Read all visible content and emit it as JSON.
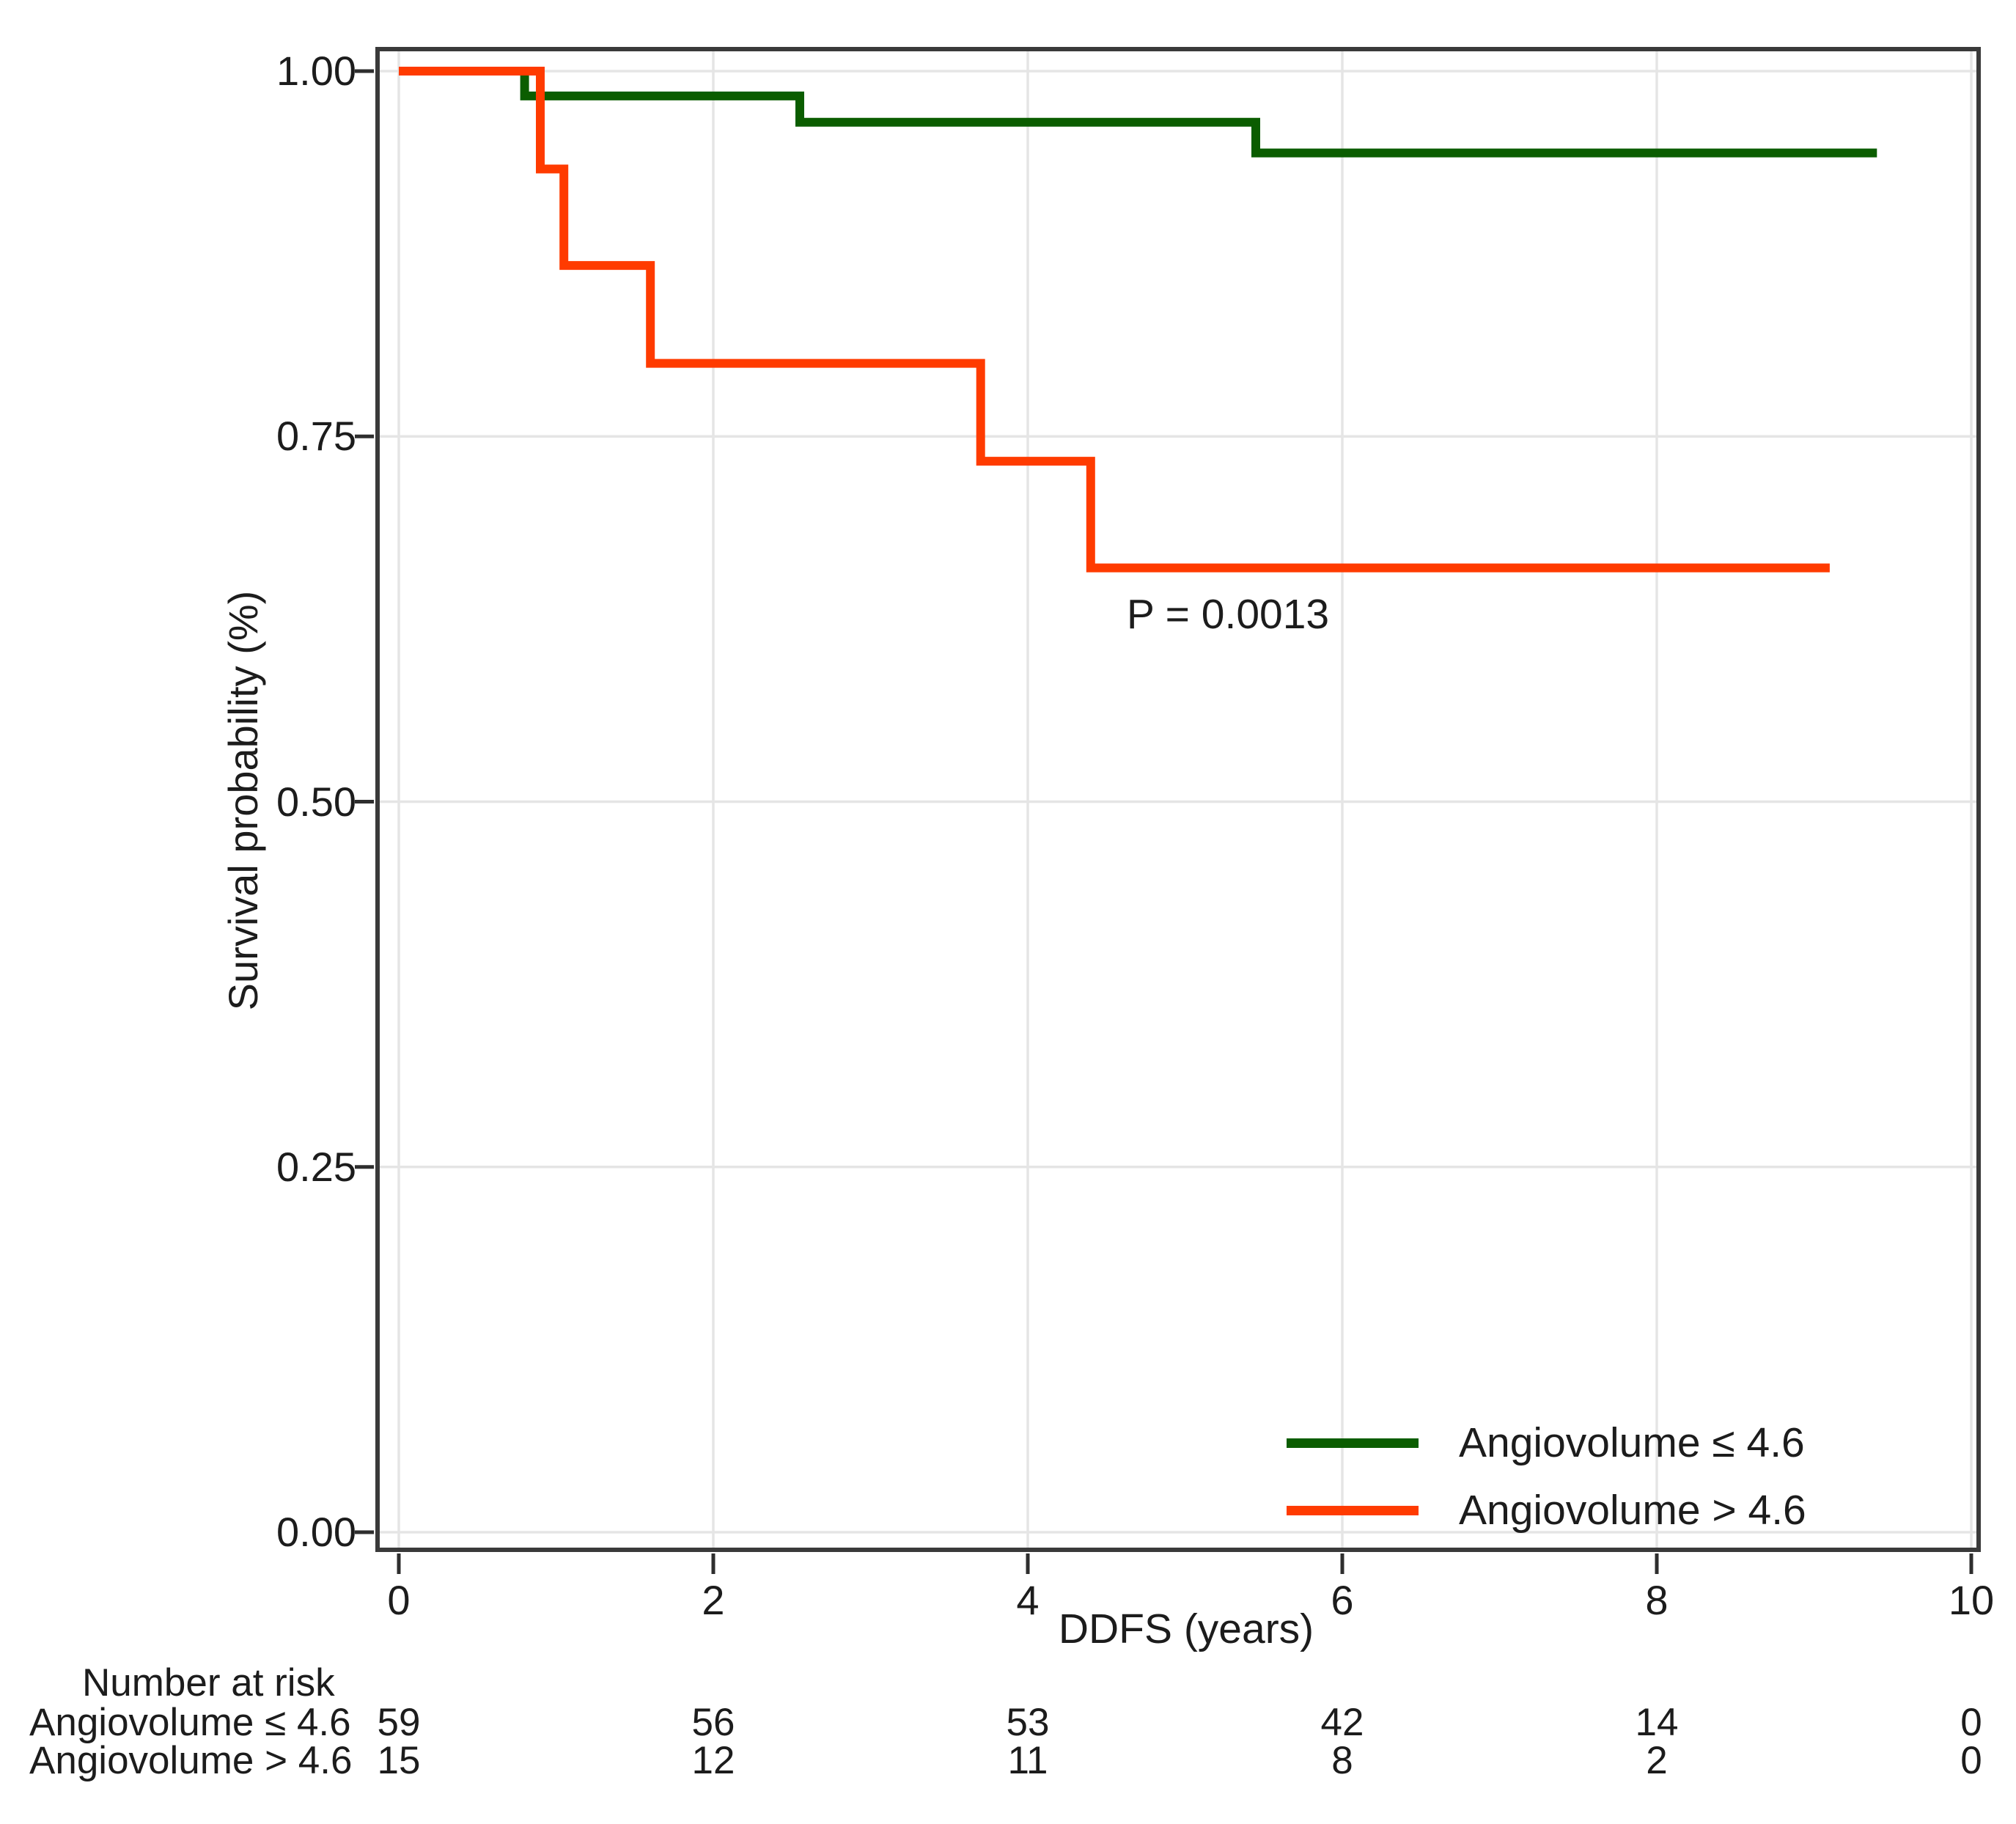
{
  "chart_data": {
    "type": "line",
    "subtype": "kaplan-meier-step-curves",
    "title": "",
    "xlabel": "DDFS (years)",
    "ylabel": "Survival probability (%)",
    "xlim": [
      0,
      10
    ],
    "ylim": [
      0.0,
      1.0
    ],
    "grid": "major-only-light-gray-on-white",
    "legend_position": "inside-bottom-right",
    "xticks": [
      0,
      2,
      4,
      6,
      8,
      10
    ],
    "xtick_labels": [
      "0",
      "2",
      "4",
      "6",
      "8",
      "10"
    ],
    "yticks": [
      1.0,
      0.75,
      0.5,
      0.25,
      0.0
    ],
    "ytick_labels": [
      "1.00",
      "0.75",
      "0.50",
      "0.25",
      "0.00"
    ],
    "annotation": {
      "text": "P = 0.0013"
    },
    "series": [
      {
        "name": "Angiovolume ≤ 4.6",
        "color": "#0B5D00",
        "steps": [
          [
            0,
            1.0
          ],
          [
            0.8,
            1.0
          ],
          [
            0.8,
            0.983
          ],
          [
            2.55,
            0.983
          ],
          [
            2.55,
            0.965
          ],
          [
            5.45,
            0.965
          ],
          [
            5.45,
            0.944
          ],
          [
            9.4,
            0.944
          ]
        ]
      },
      {
        "name": "Angiovolume > 4.6",
        "color": "#FF3B00",
        "steps": [
          [
            0,
            1.0
          ],
          [
            0.9,
            1.0
          ],
          [
            0.9,
            0.933
          ],
          [
            1.05,
            0.933
          ],
          [
            1.05,
            0.867
          ],
          [
            1.6,
            0.867
          ],
          [
            1.6,
            0.8
          ],
          [
            3.7,
            0.8
          ],
          [
            3.7,
            0.733
          ],
          [
            4.4,
            0.733
          ],
          [
            4.4,
            0.66
          ],
          [
            9.1,
            0.66
          ]
        ]
      }
    ],
    "risk_table": {
      "header": "Number at risk",
      "times": [
        0,
        2,
        4,
        6,
        8,
        10
      ],
      "rows": [
        {
          "label": "Angiovolume ≤ 4.6",
          "values": [
            "59",
            "56",
            "53",
            "42",
            "14",
            "0"
          ]
        },
        {
          "label": "Angiovolume > 4.6",
          "values": [
            "15",
            "12",
            "11",
            "8",
            "2",
            "0"
          ]
        }
      ]
    },
    "colors": {
      "frame": "#3A3A3A",
      "grid": "#E5E5E5",
      "tick": "#2E2E2E",
      "text": "#1C1C1C",
      "plot_background": "#FFFFFF"
    }
  }
}
